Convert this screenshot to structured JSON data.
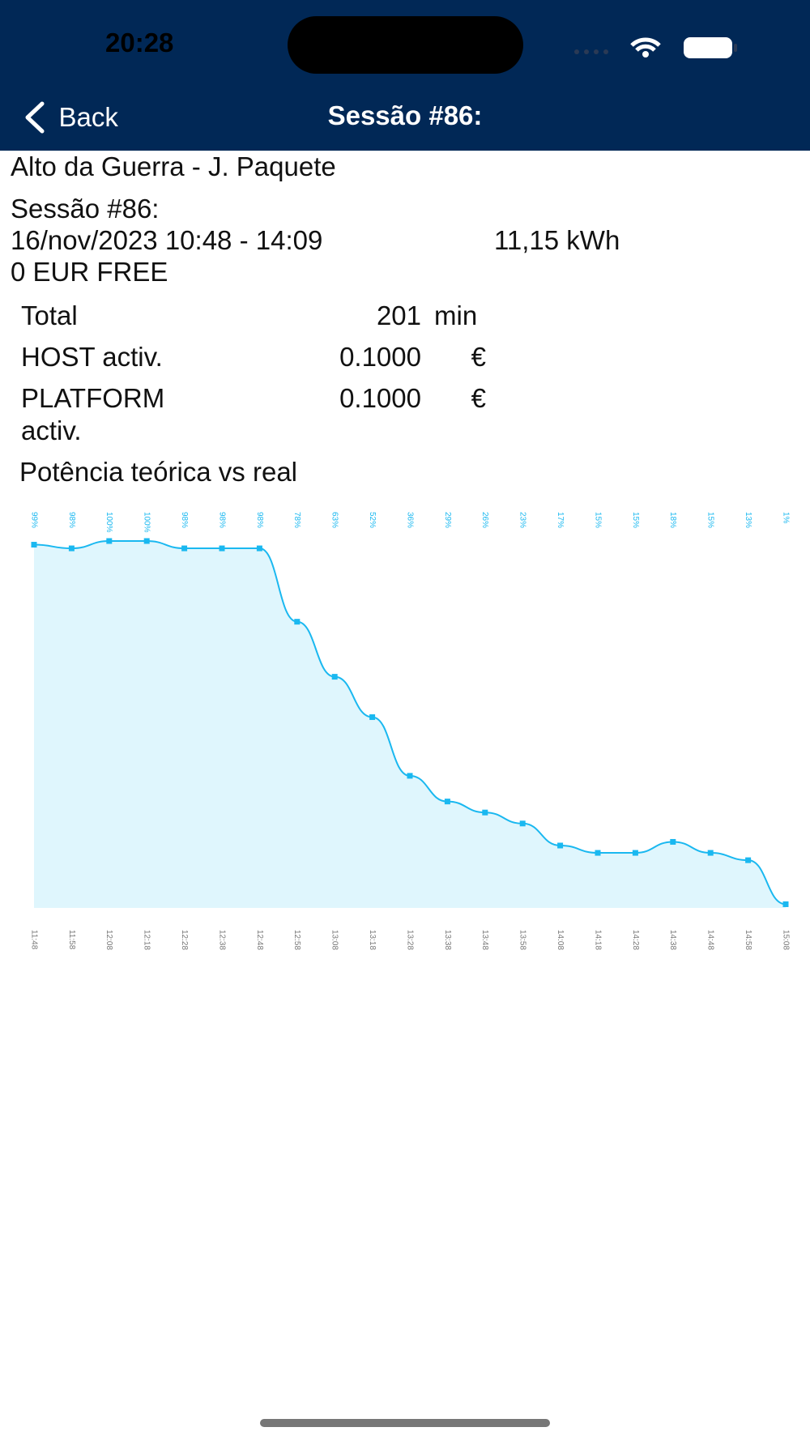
{
  "status_bar": {
    "time": "20:28"
  },
  "nav": {
    "back": "Back",
    "title": "Sessão #86:"
  },
  "session": {
    "station": "Alto da Guerra - J. Paquete",
    "title": "Sessão #86:",
    "period": "16/nov/2023 10:48 - 14:09",
    "energy": "11,15 kWh",
    "cost": "0 EUR FREE"
  },
  "table": {
    "rows": [
      [
        "Total",
        "201",
        "min"
      ],
      [
        "HOST activ.",
        "0.1000",
        "€"
      ],
      [
        "PLATFORM activ.",
        "0.1000",
        "€"
      ]
    ]
  },
  "chart_data": {
    "type": "area",
    "title": "Potência teórica vs real",
    "categories": [
      "11:48",
      "11:58",
      "12:08",
      "12:18",
      "12:28",
      "12:38",
      "12:48",
      "12:58",
      "13:08",
      "13:18",
      "13:28",
      "13:38",
      "13:48",
      "13:58",
      "14:08",
      "14:18",
      "14:28",
      "14:38",
      "14:48",
      "14:58",
      "15:08"
    ],
    "values": [
      99,
      98,
      100,
      100,
      98,
      98,
      98,
      78,
      63,
      52,
      36,
      29,
      26,
      23,
      17,
      15,
      15,
      18,
      15,
      13,
      1
    ],
    "value_labels": [
      "99%",
      "98%",
      "100%",
      "100%",
      "98%",
      "98%",
      "98%",
      "78%",
      "63%",
      "52%",
      "36%",
      "29%",
      "26%",
      "23%",
      "17%",
      "15%",
      "15%",
      "18%",
      "15%",
      "13%",
      "1%"
    ],
    "color": "#1ab8f0",
    "fill_color": "#dff6fd"
  }
}
